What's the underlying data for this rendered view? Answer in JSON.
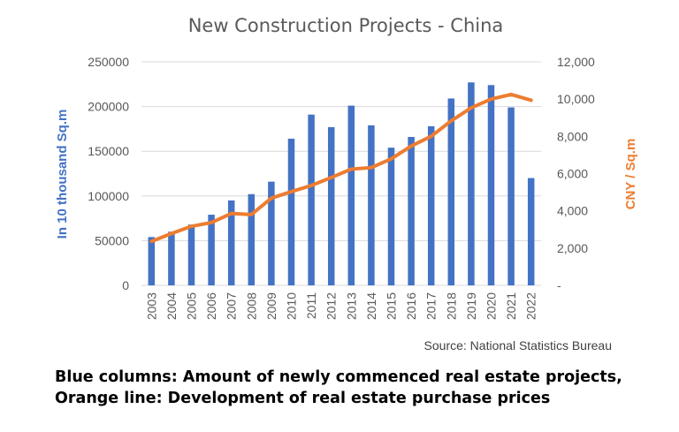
{
  "chart_data": {
    "type": "bar",
    "title": "New Construction Projects - China",
    "categories": [
      "2003",
      "2004",
      "2005",
      "2006",
      "2007",
      "2008",
      "2009",
      "2010",
      "2011",
      "2012",
      "2013",
      "2014",
      "2015",
      "2016",
      "2017",
      "2018",
      "2019",
      "2020",
      "2021",
      "2022"
    ],
    "series": [
      {
        "type": "bar",
        "axis": "left",
        "values": [
          54000,
          60000,
          68000,
          79000,
          95000,
          102000,
          116000,
          164000,
          191000,
          177000,
          201000,
          179000,
          154000,
          166000,
          178000,
          209000,
          227000,
          224000,
          199000,
          120000
        ]
      },
      {
        "type": "line",
        "axis": "right",
        "values": [
          2360,
          2780,
          3170,
          3370,
          3860,
          3800,
          4680,
          5030,
          5360,
          5790,
          6240,
          6320,
          6790,
          7480,
          8000,
          8830,
          9530,
          10000,
          10250,
          9940
        ]
      }
    ],
    "ylabel": "In 10 thousand Sq.m",
    "ylim": [
      0,
      250000
    ],
    "yticks": [
      "250000",
      "200000",
      "150000",
      "100000",
      "50000",
      "0"
    ],
    "y2label": "CNY / Sq.m",
    "y2lim": [
      0,
      12000
    ],
    "y2ticks": [
      "12,000",
      "10,000",
      "8,000",
      "6,000",
      "4,000",
      "2,000",
      "-"
    ],
    "grid": true,
    "colors": {
      "bar": "#4472c4",
      "line": "#ed7d31",
      "grid": "#d9d9d9"
    },
    "annotations": {
      "source": "Source: National Statistics Bureau"
    }
  },
  "caption": {
    "line1": "Blue columns: Amount of newly commenced real estate projects,",
    "line2": "Orange line: Development of real estate purchase prices"
  }
}
